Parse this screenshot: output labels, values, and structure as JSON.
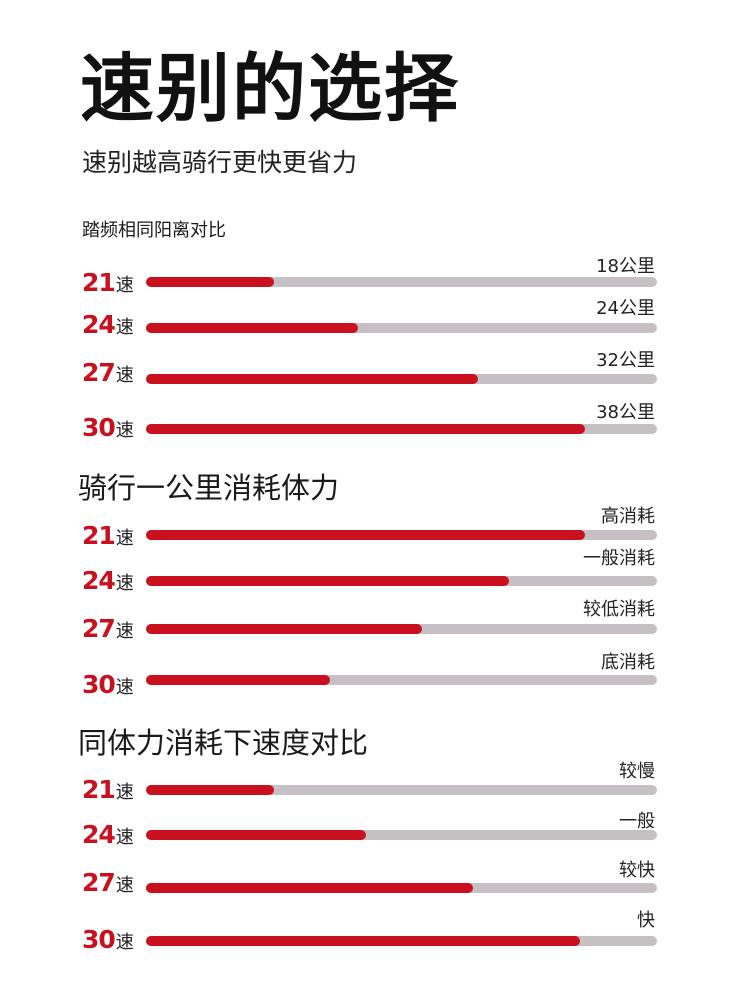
{
  "title": "速别的选择",
  "subtitle": "速别越高骑行更快更省力",
  "unit": "速",
  "sections": [
    {
      "heading": "踏频相同阳离对比",
      "rows": [
        {
          "speed": "21",
          "label": "18公里",
          "level": 0.25
        },
        {
          "speed": "24",
          "label": "24公里",
          "level": 0.415
        },
        {
          "speed": "27",
          "label": "32公里",
          "level": 0.65
        },
        {
          "speed": "30",
          "label": "38公里",
          "level": 0.86
        }
      ]
    },
    {
      "heading": "骑行一公里消耗体力",
      "rows": [
        {
          "speed": "21",
          "label": "高消耗",
          "level": 0.86
        },
        {
          "speed": "24",
          "label": "一般消耗",
          "level": 0.71
        },
        {
          "speed": "27",
          "label": "较低消耗",
          "level": 0.54
        },
        {
          "speed": "30",
          "label": "底消耗",
          "level": 0.36
        }
      ]
    },
    {
      "heading": "同体力消耗下速度对比",
      "rows": [
        {
          "speed": "21",
          "label": "较慢",
          "level": 0.25
        },
        {
          "speed": "24",
          "label": "一般",
          "level": 0.43
        },
        {
          "speed": "27",
          "label": "较快",
          "level": 0.64
        },
        {
          "speed": "30",
          "label": "快",
          "level": 0.85
        }
      ]
    }
  ],
  "colors": {
    "accent": "#c8101e",
    "track": "#c6bfc4",
    "text": "#1a1a1a"
  }
}
